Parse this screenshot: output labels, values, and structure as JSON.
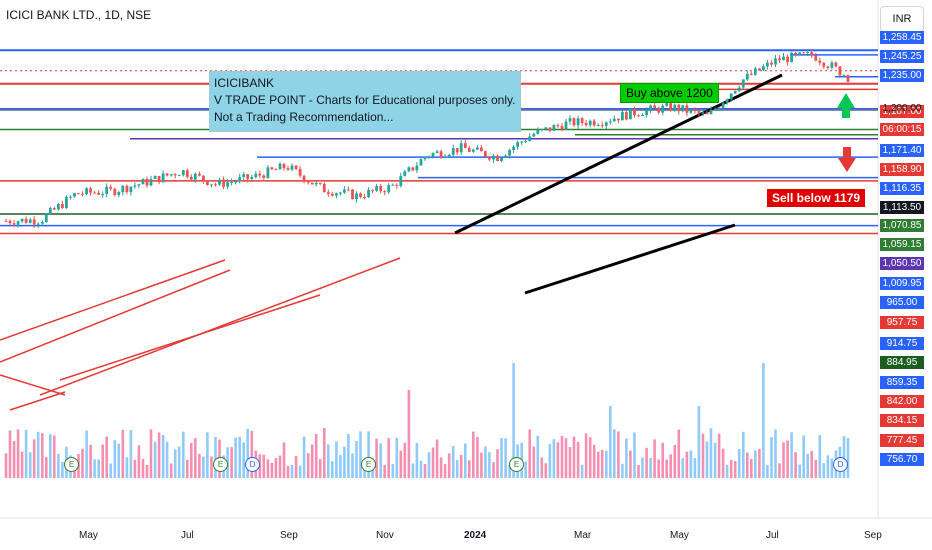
{
  "header": {
    "title": "ICICI BANK LTD., 1D, NSE",
    "currency": "INR"
  },
  "note": {
    "lines": [
      "ICICIBANK",
      "V TRADE POINT - Charts for Educational purposes only.",
      "Not a Trading Recommendation..."
    ]
  },
  "callouts": {
    "buy": "Buy above 1200",
    "sell": "Sell below 1179"
  },
  "price_labels": [
    {
      "text": "1,258.45",
      "color": "#2962ff"
    },
    {
      "text": "1,245.25",
      "color": "#2962ff"
    },
    {
      "text": "1,235.00",
      "color": "#2962ff"
    },
    {
      "text": "1,187.00",
      "color": "#e53935"
    },
    {
      "text": "06:00:15",
      "color": "#e53935"
    },
    {
      "text": "1,171.40",
      "color": "#2962ff"
    },
    {
      "text": "1,158.90",
      "color": "#e53935"
    },
    {
      "text": "1,116.35",
      "color": "#2962ff"
    },
    {
      "text": "1,113.50",
      "color": "#131722"
    },
    {
      "text": "1,070.85",
      "color": "#2e7d32"
    },
    {
      "text": "1,059.15",
      "color": "#2e7d32"
    },
    {
      "text": "1,050.50",
      "color": "#5e35b1"
    },
    {
      "text": "1,009.95",
      "color": "#2962ff"
    },
    {
      "text": "965.00",
      "color": "#2962ff"
    },
    {
      "text": "957.75",
      "color": "#e53935"
    },
    {
      "text": "914.75",
      "color": "#2962ff"
    },
    {
      "text": "884.95",
      "color": "#1b5e20"
    },
    {
      "text": "859.35",
      "color": "#2962ff"
    },
    {
      "text": "842.00",
      "color": "#e53935"
    },
    {
      "text": "834.15",
      "color": "#e53935"
    },
    {
      "text": "777.45",
      "color": "#e53935"
    },
    {
      "text": "756.70",
      "color": "#2962ff"
    }
  ],
  "plain_label": "1,200.00",
  "events": [
    "E",
    "E",
    "D",
    "E",
    "E",
    "D"
  ],
  "chart_data": {
    "type": "candlestick",
    "title": "ICICI BANK LTD., 1D, NSE",
    "x_ticks": [
      "May",
      "Jul",
      "Sep",
      "Nov",
      "2024",
      "Mar",
      "May",
      "Jul",
      "Sep"
    ],
    "ylim": [
      740,
      1265
    ],
    "series": [
      {
        "name": "close",
        "x": [
          "2023-04-03",
          "2023-04-24",
          "2023-05-15",
          "2023-06-05",
          "2023-06-26",
          "2023-07-17",
          "2023-08-07",
          "2023-08-28",
          "2023-09-18",
          "2023-10-09",
          "2023-10-30",
          "2023-11-20",
          "2023-12-11",
          "2024-01-01",
          "2024-01-22",
          "2024-02-12",
          "2024-03-04",
          "2024-03-25",
          "2024-04-15",
          "2024-05-06",
          "2024-05-27",
          "2024-06-17",
          "2024-07-08",
          "2024-07-29",
          "2024-08-12"
        ],
        "values": [
          870,
          872,
          930,
          935,
          955,
          980,
          950,
          965,
          990,
          940,
          925,
          945,
          1015,
          1030,
          1010,
          1060,
          1085,
          1090,
          1110,
          1120,
          1100,
          1180,
          1225,
          1235,
          1187
        ]
      }
    ],
    "horizontal_levels": [
      1258.45,
      1245.25,
      1235.0,
      1200.0,
      1187.0,
      1171.4,
      1158.9,
      1116.35,
      1113.5,
      1070.85,
      1059.15,
      1050.5,
      1009.95,
      965.0,
      957.75,
      914.75,
      884.95,
      859.35,
      842.0,
      834.15,
      777.45,
      756.7
    ],
    "annotations": [
      "Buy above 1200",
      "Sell below 1179"
    ]
  }
}
